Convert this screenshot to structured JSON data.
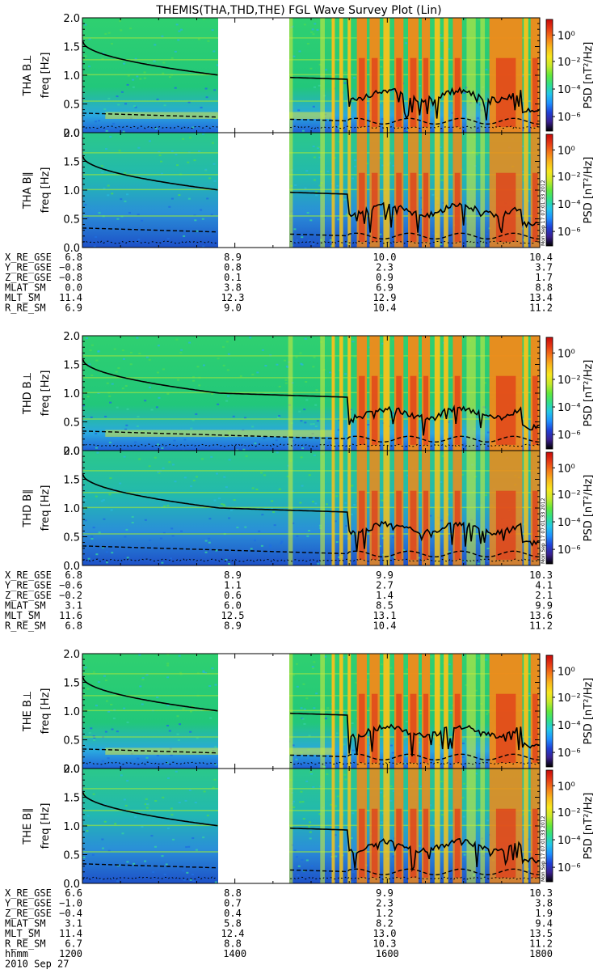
{
  "title": "THEMIS(THA,THD,THE) FGL Wave Survey Plot (Lin)",
  "colorbar": {
    "label": "PSD [nT²/Hz]",
    "ticks": [
      "10⁰",
      "10⁻²",
      "10⁻⁴",
      "10⁻⁶"
    ]
  },
  "stamp": "Mon Sep 17 07:01:33 2012",
  "gap_color": "#ffffff",
  "chart_data": {
    "type": "heatmap",
    "xaxis": {
      "row_labels": [
        "hhmm",
        "2010 Sep 27"
      ],
      "ticks": [
        "1200",
        "1400",
        "1600",
        "1800"
      ],
      "range": [
        "1200",
        "1800"
      ]
    },
    "groups": [
      {
        "id": "tha",
        "panels": [
          {
            "label": "THA B⊥",
            "ylabel": "freq [Hz]",
            "yticks": [
              "0.0",
              "0.5",
              "1.0",
              "1.5",
              "2.0"
            ],
            "ylim": [
              0,
              2
            ]
          },
          {
            "label": "THA B∥",
            "ylabel": "freq [Hz]",
            "yticks": [
              "0.0",
              "0.5",
              "1.0",
              "1.5",
              "2.0"
            ],
            "ylim": [
              0,
              2
            ]
          }
        ],
        "data_gap": [
          "1415",
          "1540"
        ],
        "ephemeris": [
          {
            "name": "X_RE_GSE",
            "values": [
              "6.8",
              "8.9",
              "10.0",
              "10.4"
            ]
          },
          {
            "name": "Y_RE_GSE",
            "values": [
              "−0.8",
              "0.8",
              "2.3",
              "3.7"
            ]
          },
          {
            "name": "Z_RE_GSE",
            "values": [
              "−0.8",
              "0.1",
              "0.9",
              "1.7"
            ]
          },
          {
            "name": "MLAT_SM",
            "values": [
              "0.0",
              "3.8",
              "6.9",
              "8.8"
            ]
          },
          {
            "name": "MLT_SM",
            "values": [
              "11.4",
              "12.3",
              "12.9",
              "13.4"
            ]
          },
          {
            "name": "R_RE_SM",
            "values": [
              "6.9",
              "9.0",
              "10.4",
              "11.2"
            ]
          }
        ]
      },
      {
        "id": "thd",
        "panels": [
          {
            "label": "THD B⊥",
            "ylabel": "freq [Hz]",
            "yticks": [
              "0.0",
              "0.5",
              "1.0",
              "1.5",
              "2.0"
            ],
            "ylim": [
              0,
              2
            ]
          },
          {
            "label": "THD B∥",
            "ylabel": "freq [Hz]",
            "yticks": [
              "0.0",
              "0.5",
              "1.0",
              "1.5",
              "2.0"
            ],
            "ylim": [
              0,
              2
            ]
          }
        ],
        "data_gap": null,
        "ephemeris": [
          {
            "name": "X_RE_GSE",
            "values": [
              "6.8",
              "8.9",
              "9.9",
              "10.3"
            ]
          },
          {
            "name": "Y_RE_GSE",
            "values": [
              "−0.6",
              "1.1",
              "2.7",
              "4.1"
            ]
          },
          {
            "name": "Z_RE_GSE",
            "values": [
              "−0.2",
              "0.6",
              "1.4",
              "2.1"
            ]
          },
          {
            "name": "MLAT_SM",
            "values": [
              "3.1",
              "6.0",
              "8.5",
              "9.9"
            ]
          },
          {
            "name": "MLT_SM",
            "values": [
              "11.6",
              "12.5",
              "13.1",
              "13.6"
            ]
          },
          {
            "name": "R_RE_SM",
            "values": [
              "6.8",
              "8.9",
              "10.4",
              "11.2"
            ]
          }
        ]
      },
      {
        "id": "the",
        "panels": [
          {
            "label": "THE B⊥",
            "ylabel": "freq [Hz]",
            "yticks": [
              "0.0",
              "0.5",
              "1.0",
              "1.5",
              "2.0"
            ],
            "ylim": [
              0,
              2
            ]
          },
          {
            "label": "THE B∥",
            "ylabel": "freq [Hz]",
            "yticks": [
              "0.0",
              "0.5",
              "1.0",
              "1.5",
              "2.0"
            ],
            "ylim": [
              0,
              2
            ]
          }
        ],
        "data_gap": [
          "1415",
          "1540"
        ],
        "ephemeris": [
          {
            "name": "X_RE_GSE",
            "values": [
              "6.6",
              "8.8",
              "9.9",
              "10.3"
            ]
          },
          {
            "name": "Y_RE_GSE",
            "values": [
              "−1.0",
              "0.7",
              "2.3",
              "3.8"
            ]
          },
          {
            "name": "Z_RE_GSE",
            "values": [
              "−0.4",
              "0.4",
              "1.2",
              "1.9"
            ]
          },
          {
            "name": "MLAT_SM",
            "values": [
              "3.1",
              "5.8",
              "8.2",
              "9.4"
            ]
          },
          {
            "name": "MLT_SM",
            "values": [
              "11.4",
              "12.4",
              "13.0",
              "13.5"
            ]
          },
          {
            "name": "R_RE_SM",
            "values": [
              "6.7",
              "8.8",
              "10.3",
              "11.2"
            ]
          }
        ]
      }
    ],
    "lines": {
      "solid": {
        "start": 1.6,
        "end_before_gap": 1.0,
        "mid": 0.95
      },
      "dashed": {
        "start": 0.35,
        "end": 0.2
      }
    },
    "colorscale": [
      "#000000",
      "#3a1f8f",
      "#1f3fd6",
      "#1e90ff",
      "#22c7e8",
      "#2fdf8a",
      "#62e83a",
      "#c6e82a",
      "#f7e61e",
      "#f8b81c",
      "#f57a18",
      "#e63a14",
      "#c80a0a"
    ]
  }
}
